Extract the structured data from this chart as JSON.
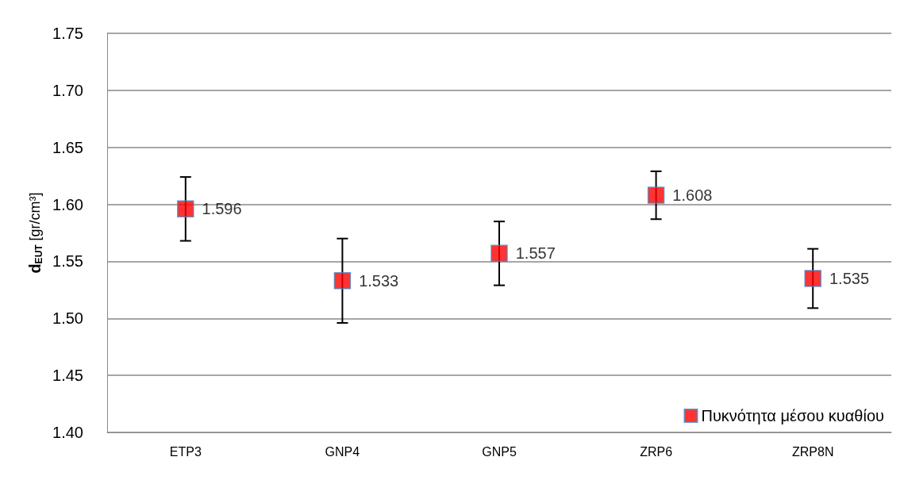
{
  "chart_data": {
    "type": "scatter",
    "ylabel": "d$_{EUT}$ [gr/cm³]",
    "categories": [
      "ETP3",
      "GNP4",
      "GNP5",
      "ZRP6",
      "ZRP8N"
    ],
    "series": [
      {
        "name": "Πυκνότητα μέσου κυαθίου",
        "color": "#ff0000",
        "values": [
          1.596,
          1.533,
          1.557,
          1.608,
          1.535
        ],
        "errors": [
          0.028,
          0.037,
          0.028,
          0.021,
          0.026
        ]
      }
    ],
    "ylim": [
      1.4,
      1.75
    ],
    "yticks": [
      {
        "value": 1.4,
        "label": "1.40"
      },
      {
        "value": 1.45,
        "label": "1.45"
      },
      {
        "value": 1.5,
        "label": "1.50"
      },
      {
        "value": 1.55,
        "label": "1.55"
      },
      {
        "value": 1.6,
        "label": "1.60"
      },
      {
        "value": 1.65,
        "label": "1.65"
      },
      {
        "value": 1.7,
        "label": "1.70"
      },
      {
        "value": 1.75,
        "label": "1.75"
      }
    ],
    "grid": "y",
    "legend": "bottom right",
    "marker": "square",
    "data_labels": true
  }
}
